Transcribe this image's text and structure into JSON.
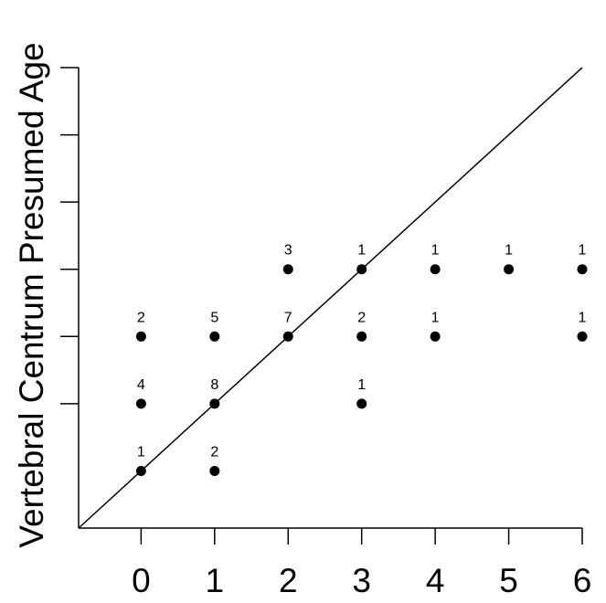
{
  "chart_data": {
    "type": "scatter",
    "title": "",
    "xlabel": "",
    "ylabel": "Vertebral Centrum Presumed Age",
    "x_ticks": [
      "0",
      "1",
      "2",
      "3",
      "4",
      "5",
      "6"
    ],
    "xlim": [
      -0.85,
      6.0
    ],
    "ylim": [
      -0.85,
      6.0
    ],
    "y_tick_values": [
      1,
      2,
      3,
      4,
      5,
      6
    ],
    "y_tick_labels_shown": false,
    "reference_line": "y = x",
    "grid": false,
    "legend": "none",
    "points": [
      {
        "x": 0,
        "y": 0,
        "count": "1"
      },
      {
        "x": 0,
        "y": 1,
        "count": "4"
      },
      {
        "x": 0,
        "y": 2,
        "count": "2"
      },
      {
        "x": 1,
        "y": 0,
        "count": "2"
      },
      {
        "x": 1,
        "y": 1,
        "count": "8"
      },
      {
        "x": 1,
        "y": 2,
        "count": "5"
      },
      {
        "x": 2,
        "y": 2,
        "count": "7"
      },
      {
        "x": 2,
        "y": 3,
        "count": "3"
      },
      {
        "x": 3,
        "y": 1,
        "count": "1"
      },
      {
        "x": 3,
        "y": 2,
        "count": "2"
      },
      {
        "x": 3,
        "y": 3,
        "count": "1"
      },
      {
        "x": 4,
        "y": 2,
        "count": "1"
      },
      {
        "x": 4,
        "y": 3,
        "count": "1"
      },
      {
        "x": 5,
        "y": 3,
        "count": "1"
      },
      {
        "x": 6,
        "y": 2,
        "count": "1"
      },
      {
        "x": 6,
        "y": 3,
        "count": "1"
      }
    ]
  }
}
